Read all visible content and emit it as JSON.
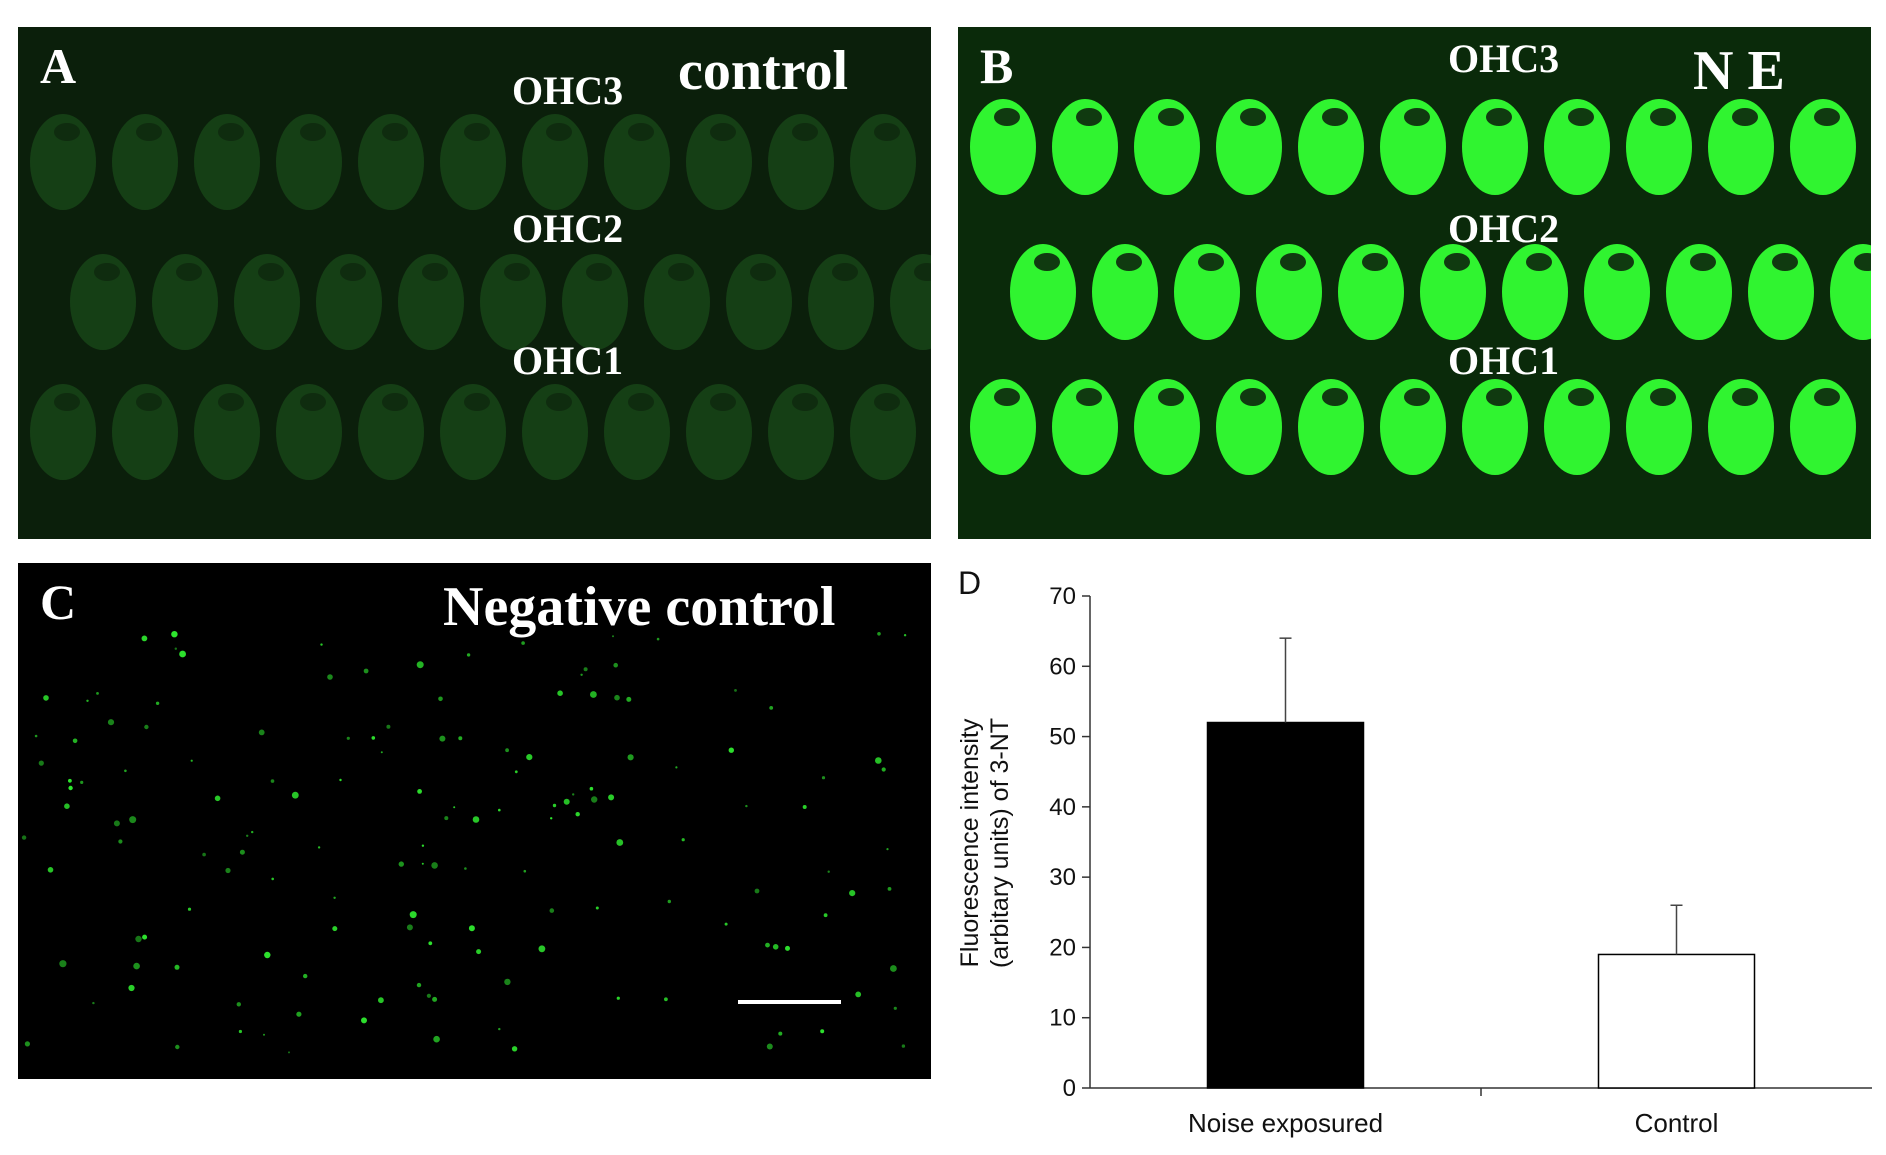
{
  "panels": {
    "a": {
      "label": "A",
      "condition": "control",
      "rows": [
        "OHC3",
        "OHC2",
        "OHC1"
      ],
      "brightness": "dim",
      "cell_color": "#1f5a1f"
    },
    "b": {
      "label": "B",
      "condition": "N E",
      "rows": [
        "OHC3",
        "OHC2",
        "OHC1"
      ],
      "brightness": "bright",
      "cell_color": "#33ff33"
    },
    "c": {
      "label": "C",
      "condition": "Negative control",
      "dot_color": "#2ee62e"
    }
  },
  "chart_data": {
    "panel_label": "D",
    "type": "bar",
    "categories": [
      "Noise exposured",
      "Control"
    ],
    "values": [
      52,
      19
    ],
    "errors": [
      12,
      7
    ],
    "bar_colors": [
      "#000000",
      "#ffffff"
    ],
    "ylabel_lines": [
      "Fluorescence intensity",
      "(arbitary units) of 3-NT"
    ],
    "ylim": [
      0,
      70
    ],
    "yticks": [
      0,
      10,
      20,
      30,
      40,
      50,
      60,
      70
    ],
    "grid": false
  }
}
